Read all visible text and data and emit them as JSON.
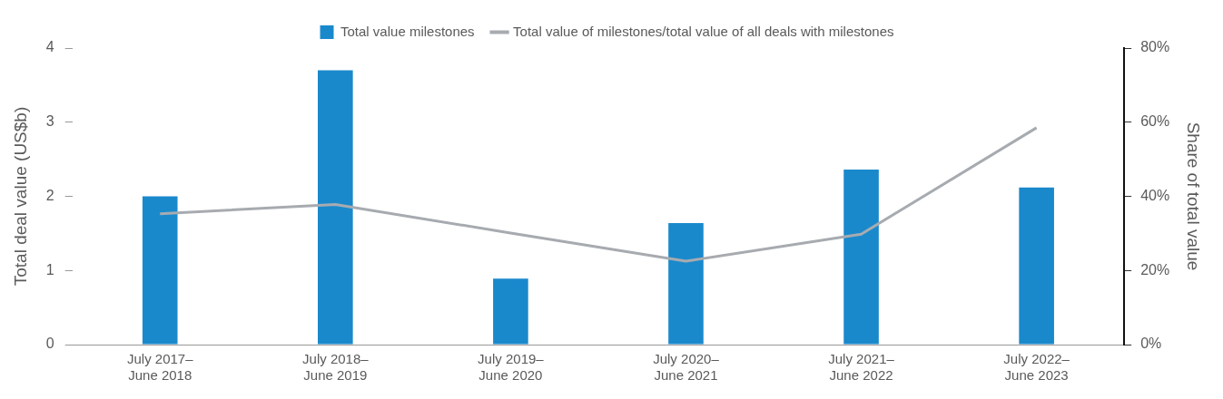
{
  "chart_data": {
    "type": "bar",
    "categories": [
      "July 2017–\nJune 2018",
      "July 2018–\nJune 2019",
      "July 2019–\nJune 2020",
      "July 2020–\nJune 2021",
      "July 2021–\nJune 2022",
      "July 2022–\nJune 2023"
    ],
    "series": [
      {
        "name": "Total value milestones",
        "color": "#1a89cc",
        "values": [
          2.0,
          3.7,
          0.89,
          1.64,
          2.36,
          2.12
        ]
      },
      {
        "name": "Total value of milestones/total value of all deals with milestones",
        "type": "line",
        "axis": "y2",
        "color": "#a7abb0",
        "values": [
          35.3,
          37.8,
          30.1,
          22.5,
          29.8,
          58.5
        ]
      }
    ],
    "ylabel": "Total deal value (US$b)",
    "y2label": "Share of total value",
    "ylim": [
      0,
      4
    ],
    "yticks": [
      0,
      1,
      2,
      3,
      4
    ],
    "y2lim": [
      0,
      80
    ],
    "y2ticks": [
      {
        "value": 0,
        "label": "0%"
      },
      {
        "value": 20,
        "label": "20%"
      },
      {
        "value": 40,
        "label": "40%"
      },
      {
        "value": 60,
        "label": "60%"
      },
      {
        "value": 80,
        "label": "80%"
      }
    ],
    "legend": "top",
    "grid": false,
    "marker": "none"
  }
}
